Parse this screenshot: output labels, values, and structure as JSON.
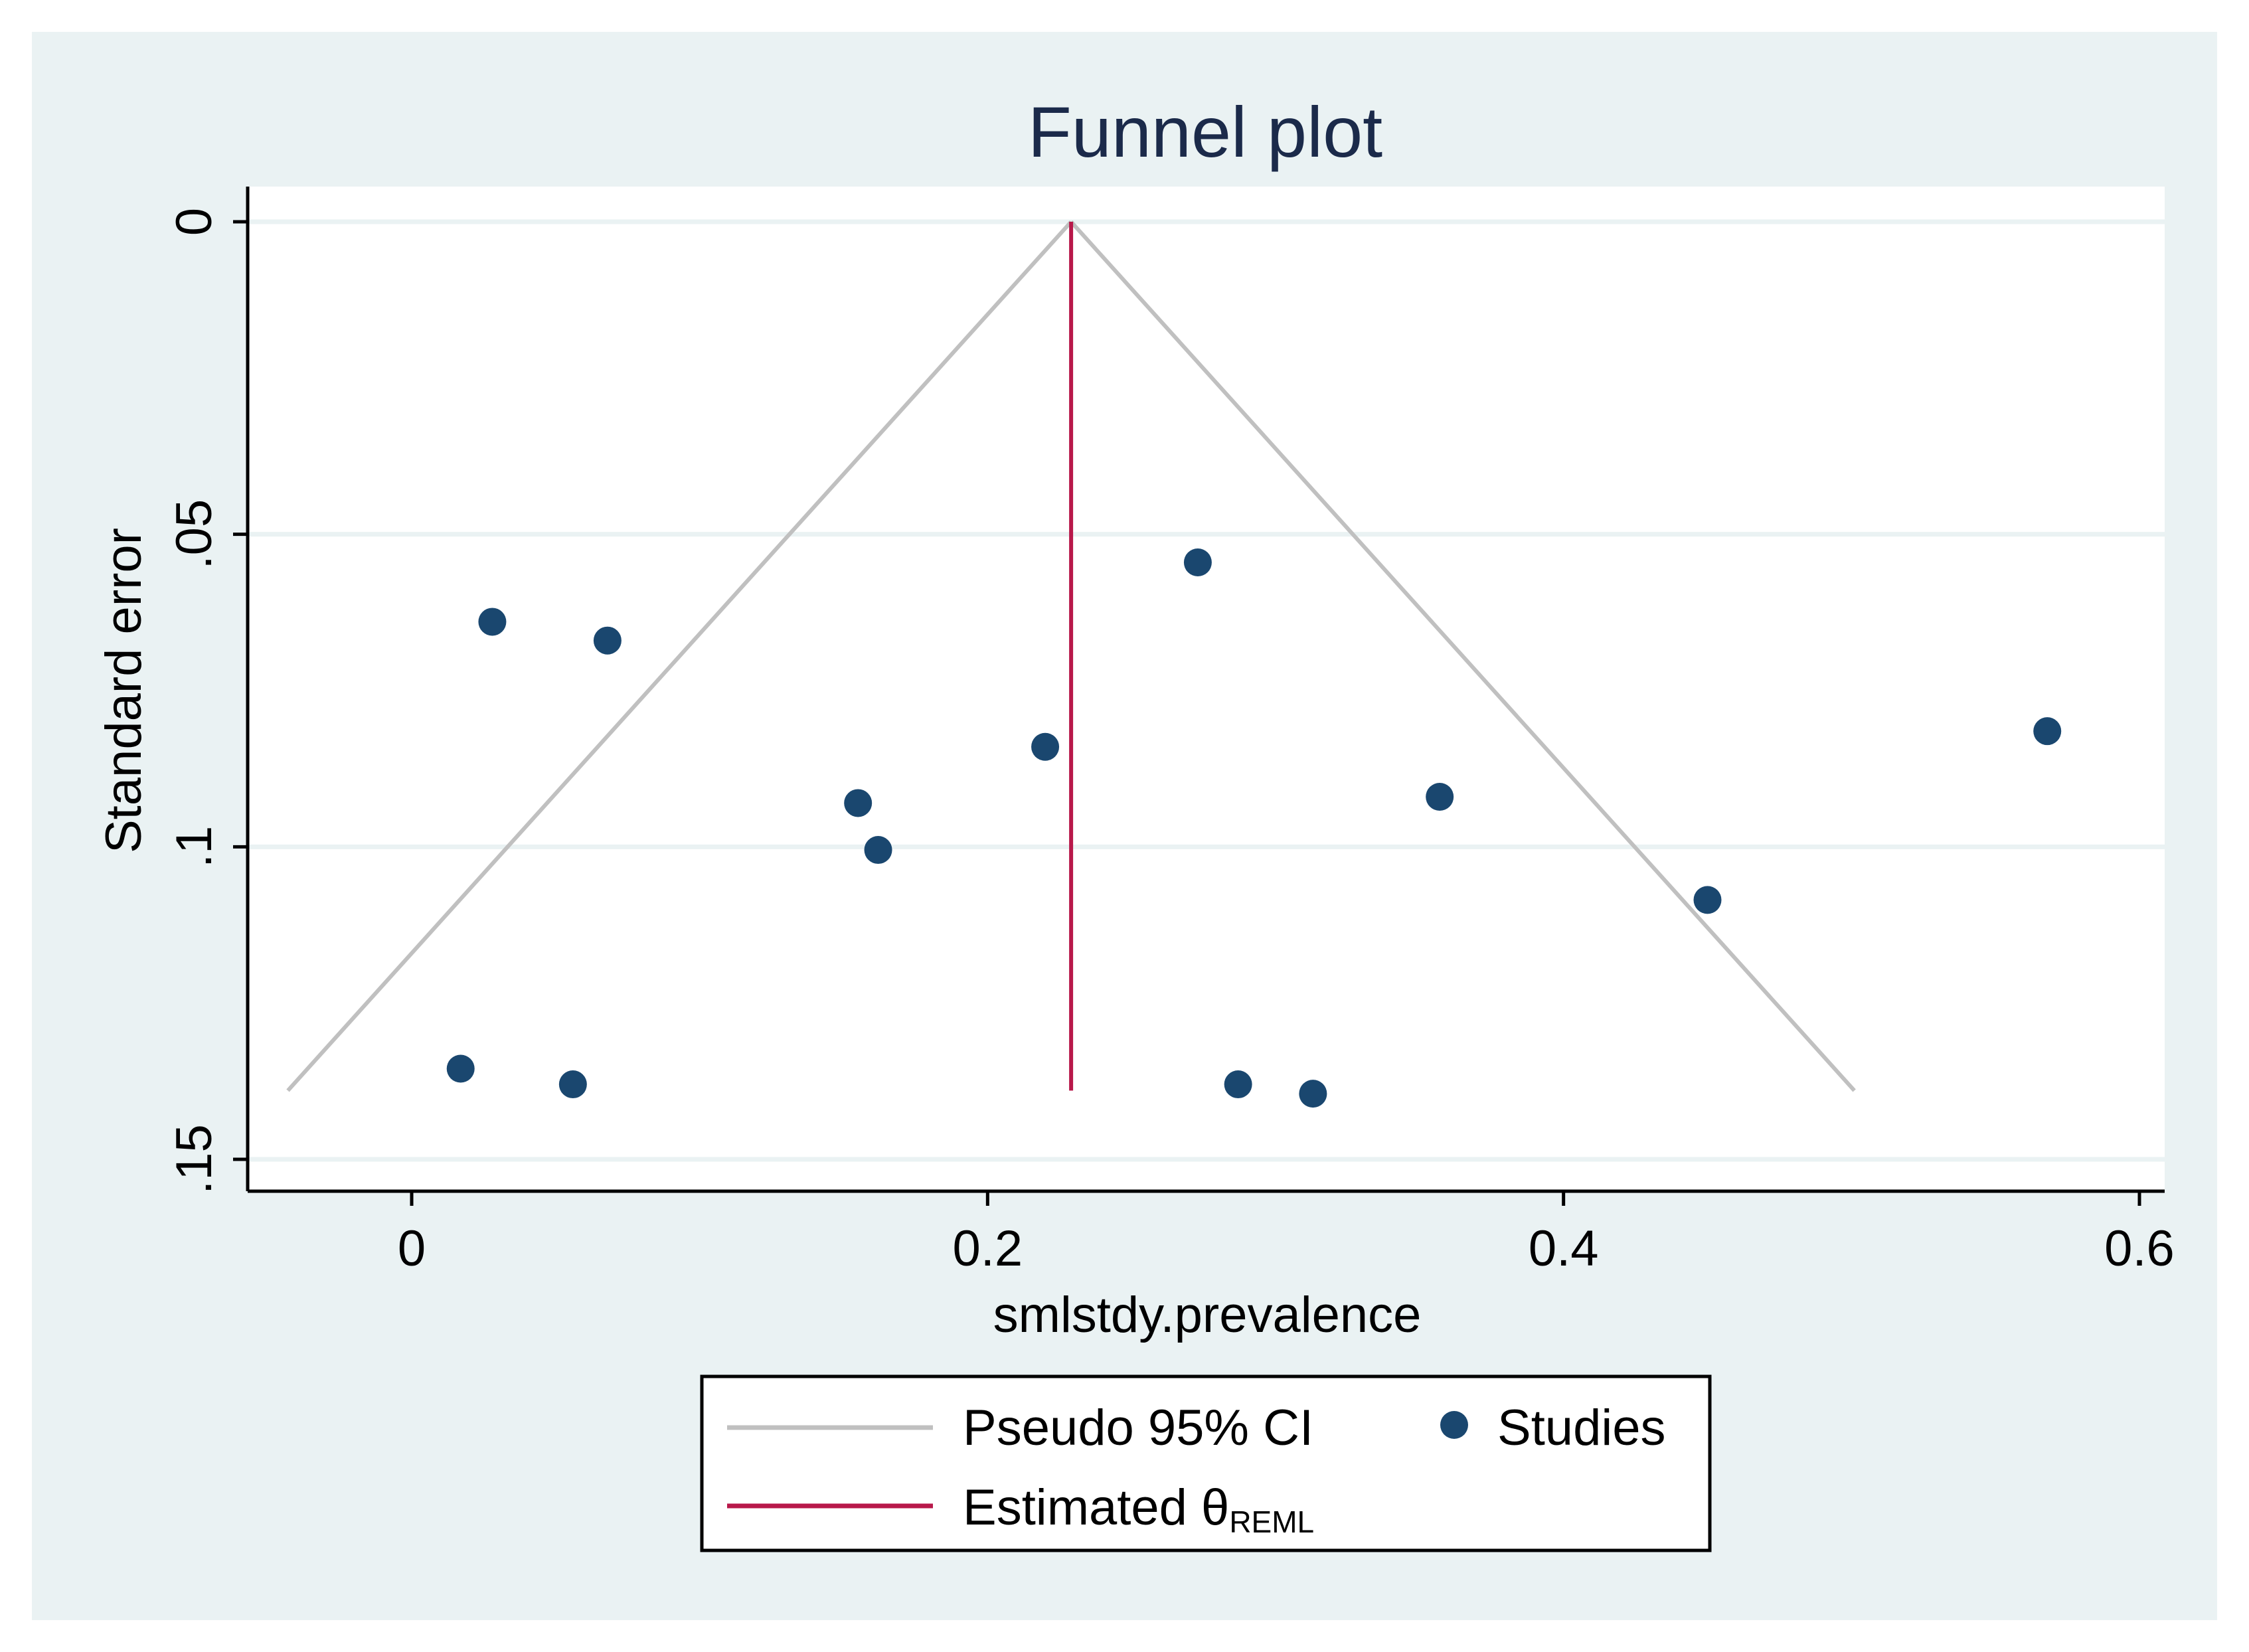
{
  "chart_data": {
    "type": "scatter",
    "title": "Funnel plot",
    "xlabel": "smlstdy.prevalence",
    "ylabel": "Standard error",
    "xlim": [
      -0.056,
      0.61
    ],
    "ylim": [
      0,
      0.155
    ],
    "y_reversed": true,
    "x_ticks": [
      0,
      0.2,
      0.4,
      0.6
    ],
    "x_tick_labels": [
      "0",
      "0.2",
      "0.4",
      "0.6"
    ],
    "y_ticks": [
      0,
      0.05,
      0.1,
      0.15
    ],
    "y_tick_labels": [
      "0",
      ".05",
      ".1",
      ".15"
    ],
    "grid": true,
    "estimated_theta": 0.229,
    "ci_funnel": {
      "apex": [
        0.229,
        0
      ],
      "left_bottom": [
        -0.043,
        0.139
      ],
      "right_bottom": [
        0.501,
        0.139
      ]
    },
    "theta_line": {
      "x": 0.229,
      "y_from": 0,
      "y_to": 0.139
    },
    "series": [
      {
        "name": "Studies",
        "points": [
          {
            "x": 0.028,
            "y": 0.064
          },
          {
            "x": 0.068,
            "y": 0.067
          },
          {
            "x": 0.155,
            "y": 0.093
          },
          {
            "x": 0.162,
            "y": 0.1005
          },
          {
            "x": 0.22,
            "y": 0.084
          },
          {
            "x": 0.273,
            "y": 0.0545
          },
          {
            "x": 0.357,
            "y": 0.092
          },
          {
            "x": 0.45,
            "y": 0.1085
          },
          {
            "x": 0.568,
            "y": 0.0815
          },
          {
            "x": 0.017,
            "y": 0.1355
          },
          {
            "x": 0.056,
            "y": 0.138
          },
          {
            "x": 0.287,
            "y": 0.138
          },
          {
            "x": 0.313,
            "y": 0.1395
          }
        ]
      }
    ],
    "legend": {
      "placement": "bottom",
      "ci_label": "Pseudo 95% CI",
      "studies_label": "Studies",
      "theta_label": "Estimated θ",
      "theta_subscript": "REML"
    },
    "colors": {
      "outer_bg": "#eaf2f3",
      "plot_bg": "#ffffff",
      "grid": "#eaf2f3",
      "points": "#1a476f",
      "ci_line": "#c0c0c0",
      "theta_line": "#b8184a",
      "title": "#1b2a4a"
    }
  }
}
